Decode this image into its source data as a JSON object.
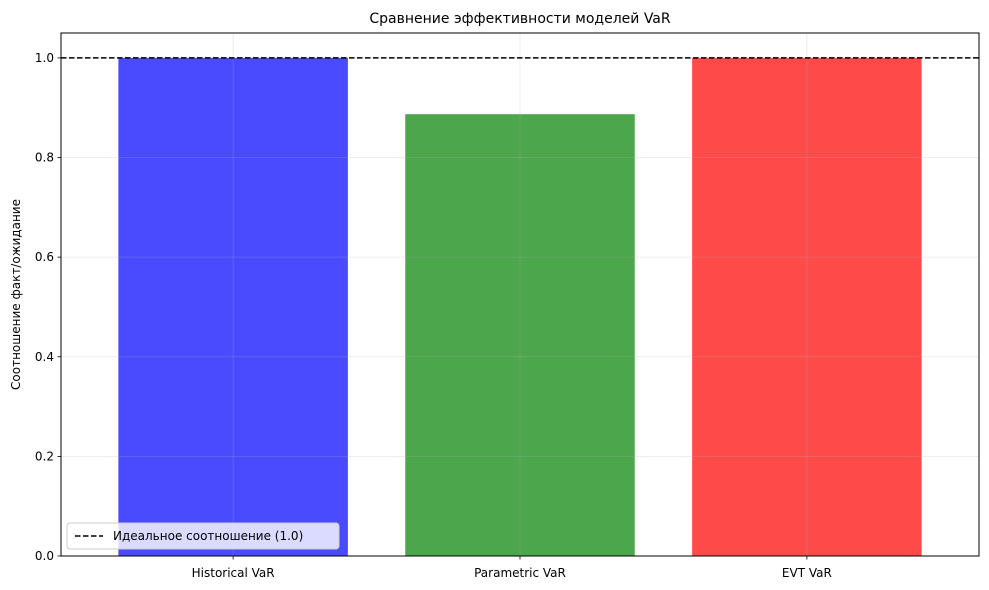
{
  "chart_data": {
    "type": "bar",
    "title": "Сравнение эффективности моделей VaR",
    "xlabel": "",
    "ylabel": "Соотношение факт/ожидание",
    "categories": [
      "Historical VaR",
      "Parametric VaR",
      "EVT VaR"
    ],
    "values": [
      1.0,
      0.887,
      1.0
    ],
    "colors": [
      "#4a4aff",
      "#4ca64c",
      "#ff4a4a"
    ],
    "ylim": [
      0,
      1.05
    ],
    "yticks": [
      0.0,
      0.2,
      0.4,
      0.6,
      0.8,
      1.0
    ],
    "ytick_labels": [
      "0.0",
      "0.2",
      "0.4",
      "0.6",
      "0.8",
      "1.0"
    ],
    "grid": true,
    "reference_line": {
      "value": 1.0,
      "style": "dashed",
      "color": "#000000"
    },
    "legend": {
      "placement": "lower-left",
      "entries": [
        "Идеальное соотношение (1.0)"
      ]
    }
  }
}
